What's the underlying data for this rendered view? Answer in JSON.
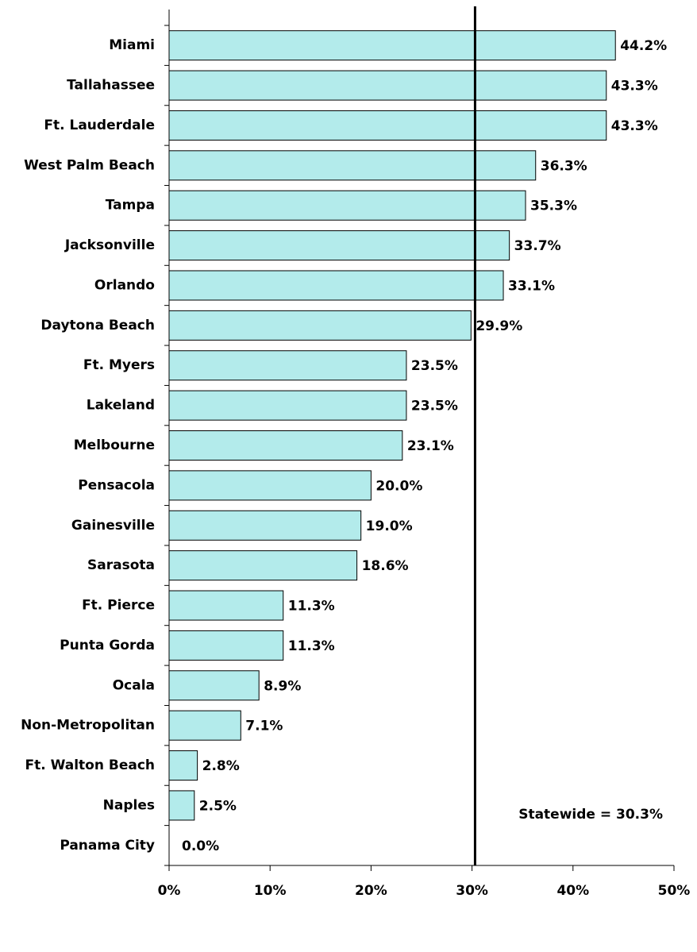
{
  "chart_data": {
    "type": "bar",
    "orientation": "horizontal",
    "categories": [
      "Miami",
      "Tallahassee",
      "Ft. Lauderdale",
      "West Palm Beach",
      "Tampa",
      "Jacksonville",
      "Orlando",
      "Daytona Beach",
      "Ft. Myers",
      "Lakeland",
      "Melbourne",
      "Pensacola",
      "Gainesville",
      "Sarasota",
      "Ft. Pierce",
      "Punta Gorda",
      "Ocala",
      "Non-Metropolitan",
      "Ft. Walton Beach",
      "Naples",
      "Panama City"
    ],
    "values": [
      44.2,
      43.3,
      43.3,
      36.3,
      35.3,
      33.7,
      33.1,
      29.9,
      23.5,
      23.5,
      23.1,
      20.0,
      19.0,
      18.6,
      11.3,
      11.3,
      8.9,
      7.1,
      2.8,
      2.5,
      0.0
    ],
    "value_labels": [
      "44.2%",
      "43.3%",
      "43.3%",
      "36.3%",
      "35.3%",
      "33.7%",
      "33.1%",
      "29.9%",
      "23.5%",
      "23.5%",
      "23.1%",
      "20.0%",
      "19.0%",
      "18.6%",
      "11.3%",
      "11.3%",
      "8.9%",
      "7.1%",
      "2.8%",
      "2.5%",
      "0.0%"
    ],
    "color": "#b3ebeb",
    "xlim": [
      0,
      50
    ],
    "xticks": [
      {
        "value": 0,
        "label": "0%"
      },
      {
        "value": 10,
        "label": "10%"
      },
      {
        "value": 20,
        "label": "20%"
      },
      {
        "value": 30,
        "label": "30%"
      },
      {
        "value": 40,
        "label": "40%"
      },
      {
        "value": 50,
        "label": "50%"
      }
    ],
    "reference_line": {
      "value": 30.3,
      "label": "Statewide = 30.3%"
    }
  }
}
